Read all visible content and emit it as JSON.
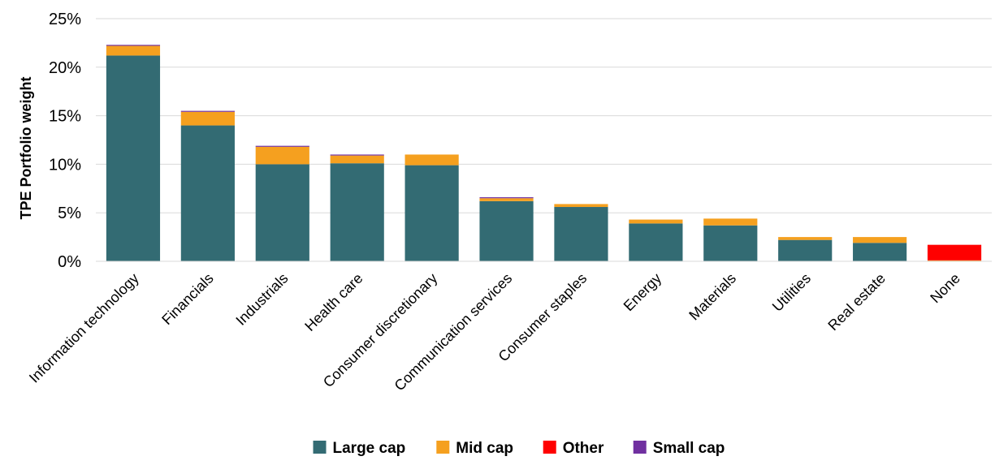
{
  "chart_data": {
    "type": "bar",
    "stacked": true,
    "title": "",
    "xlabel": "",
    "ylabel": "TPE Portfolio weight",
    "ylim": [
      0,
      25
    ],
    "yticks": [
      "0%",
      "5%",
      "10%",
      "15%",
      "20%",
      "25%"
    ],
    "grid": true,
    "legend_position": "bottom",
    "categories": [
      "Information technology",
      "Financials",
      "Industrials",
      "Health care",
      "Consumer discretionary",
      "Communication services",
      "Consumer staples",
      "Energy",
      "Materials",
      "Utilities",
      "Real estate",
      "None"
    ],
    "series": [
      {
        "name": "Large cap",
        "color": "#336b73",
        "values": [
          21.2,
          14.0,
          10.0,
          10.1,
          9.9,
          6.2,
          5.6,
          3.9,
          3.7,
          2.2,
          1.9,
          0.0
        ]
      },
      {
        "name": "Mid cap",
        "color": "#f5a01f",
        "values": [
          1.0,
          1.4,
          1.8,
          0.8,
          1.1,
          0.3,
          0.3,
          0.4,
          0.7,
          0.3,
          0.6,
          0.1
        ]
      },
      {
        "name": "Other",
        "color": "#ff0000",
        "values": [
          0.0,
          0.0,
          0.0,
          0.0,
          0.0,
          0.0,
          0.0,
          0.0,
          0.0,
          0.0,
          0.0,
          1.6
        ]
      },
      {
        "name": "Small cap",
        "color": "#7030a0",
        "values": [
          0.1,
          0.1,
          0.1,
          0.1,
          0.0,
          0.1,
          0.0,
          0.0,
          0.0,
          0.0,
          0.0,
          0.0
        ]
      }
    ]
  }
}
